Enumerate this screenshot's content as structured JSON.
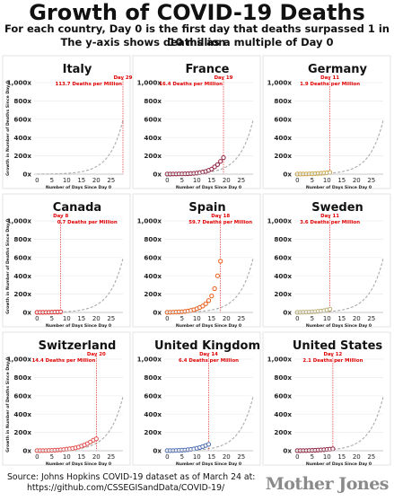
{
  "header": {
    "title": "Growth of COVID-19 Deaths",
    "subtitle_line1": "For each country, Day 0 is the first day that deaths surpassed 1 in 10 million",
    "subtitle_line2": "The y-axis shows deaths as a multiple of Day 0"
  },
  "footer": {
    "source_line1": "Source: Johns Hopkins COVID-19 dataset as of March 24 at:",
    "source_line2": "https://github.com/CSSEGISandData/COVID-19/",
    "logo": "Mother Jones"
  },
  "colors": {
    "Italy": "#7a1f2b",
    "France": "#8c1c3c",
    "Germany": "#c8a23c",
    "Canada": "#e02020",
    "Spain": "#e85a14",
    "Sweden": "#b8ad70",
    "Switzerland": "#e04a48",
    "United Kingdom": "#4a6ab0",
    "United States": "#8c1c3c",
    "reference": "#aaaaaa",
    "annotation": "#e00000"
  },
  "chart_data": [
    {
      "type": "scatter",
      "title": "Italy",
      "xlabel": "Number of Days Since Day 0",
      "ylabel": "Growth in Number of Deaths Since Day 0",
      "xlim": [
        -1,
        29
      ],
      "ylim": [
        0,
        1000
      ],
      "xticks": [
        0,
        5,
        10,
        15,
        20,
        25
      ],
      "yticks": [
        "0x",
        "200x",
        "400x",
        "600x",
        "800x",
        "1,000x"
      ],
      "annotation": {
        "day_label": "Day 29",
        "value_label": "113.7 Deaths per Million",
        "day": 29
      },
      "x": [],
      "values": [],
      "reference_line": {
        "doubling_days": 3.15
      }
    },
    {
      "type": "scatter",
      "title": "France",
      "xlabel": "Number of Days Since Day 0",
      "ylabel": "",
      "xlim": [
        -1,
        29
      ],
      "ylim": [
        0,
        1000
      ],
      "xticks": [
        0,
        5,
        10,
        15,
        20,
        25
      ],
      "yticks": [
        "0x",
        "200x",
        "400x",
        "600x",
        "800x",
        "1,000x"
      ],
      "annotation": {
        "day_label": "Day 19",
        "value_label": "16.4 Deaths per Million",
        "day": 19
      },
      "x": [
        0,
        1,
        2,
        3,
        4,
        5,
        6,
        7,
        8,
        9,
        10,
        11,
        12,
        13,
        14,
        15,
        16,
        17,
        18,
        19
      ],
      "values": [
        1,
        1,
        2,
        2,
        3,
        3,
        4,
        5,
        7,
        9,
        12,
        17,
        23,
        30,
        42,
        56,
        80,
        105,
        140,
        180
      ],
      "reference_line": {
        "doubling_days": 3.15
      }
    },
    {
      "type": "scatter",
      "title": "Germany",
      "xlabel": "Number of Days Since Day 0",
      "ylabel": "",
      "xlim": [
        -1,
        29
      ],
      "ylim": [
        0,
        1000
      ],
      "xticks": [
        0,
        5,
        10,
        15,
        20,
        25
      ],
      "yticks": [
        "0x",
        "200x",
        "400x",
        "600x",
        "800x",
        "1,000x"
      ],
      "annotation": {
        "day_label": "Day 11",
        "value_label": "1.9 Deaths per Million",
        "day": 11
      },
      "x": [
        0,
        1,
        2,
        3,
        4,
        5,
        6,
        7,
        8,
        9,
        10,
        11
      ],
      "values": [
        1,
        1,
        2,
        2,
        3,
        4,
        6,
        8,
        10,
        12,
        15,
        19
      ],
      "reference_line": {
        "doubling_days": 3.15
      }
    },
    {
      "type": "scatter",
      "title": "Canada",
      "xlabel": "Number of Days Since Day 0",
      "ylabel": "Growth in Number of Deaths Since Day 0",
      "xlim": [
        -1,
        29
      ],
      "ylim": [
        0,
        1000
      ],
      "xticks": [
        0,
        5,
        10,
        15,
        20,
        25
      ],
      "yticks": [
        "0x",
        "200x",
        "400x",
        "600x",
        "800x",
        "1,000x"
      ],
      "annotation": {
        "day_label": "Day 8",
        "value_label": "0.7 Deaths per Million",
        "day": 8
      },
      "x": [
        0,
        1,
        2,
        3,
        4,
        5,
        6,
        7,
        8
      ],
      "values": [
        1,
        1,
        1,
        2,
        2,
        3,
        4,
        5,
        7
      ],
      "reference_line": {
        "doubling_days": 3.15
      }
    },
    {
      "type": "scatter",
      "title": "Spain",
      "xlabel": "Number of Days Since Day 0",
      "ylabel": "",
      "xlim": [
        -1,
        29
      ],
      "ylim": [
        0,
        1000
      ],
      "xticks": [
        0,
        5,
        10,
        15,
        20,
        25
      ],
      "yticks": [
        "0x",
        "200x",
        "400x",
        "600x",
        "800x",
        "1,000x"
      ],
      "annotation": {
        "day_label": "Day 18",
        "value_label": "59.7 Deaths per Million",
        "day": 18
      },
      "x": [
        0,
        1,
        2,
        3,
        4,
        5,
        6,
        7,
        8,
        9,
        10,
        11,
        12,
        13,
        14,
        15,
        16,
        17,
        18
      ],
      "values": [
        1,
        2,
        3,
        4,
        6,
        8,
        11,
        15,
        22,
        30,
        40,
        55,
        70,
        95,
        130,
        180,
        260,
        400,
        560
      ],
      "reference_line": {
        "doubling_days": 3.15
      }
    },
    {
      "type": "scatter",
      "title": "Sweden",
      "xlabel": "Number of Days Since Day 0",
      "ylabel": "",
      "xlim": [
        -1,
        29
      ],
      "ylim": [
        0,
        1000
      ],
      "xticks": [
        0,
        5,
        10,
        15,
        20,
        25
      ],
      "yticks": [
        "0x",
        "200x",
        "400x",
        "600x",
        "800x",
        "1,000x"
      ],
      "annotation": {
        "day_label": "Day 11",
        "value_label": "3.6 Deaths per Million",
        "day": 11
      },
      "x": [
        0,
        1,
        2,
        3,
        4,
        5,
        6,
        7,
        8,
        9,
        10,
        11
      ],
      "values": [
        1,
        2,
        3,
        4,
        5,
        7,
        9,
        12,
        15,
        20,
        27,
        36
      ],
      "reference_line": {
        "doubling_days": 3.15
      }
    },
    {
      "type": "scatter",
      "title": "Switzerland",
      "xlabel": "Number of Days Since Day 0",
      "ylabel": "Growth in Number of Deaths Since Day 0",
      "xlim": [
        -1,
        29
      ],
      "ylim": [
        0,
        1000
      ],
      "xticks": [
        0,
        5,
        10,
        15,
        20,
        25
      ],
      "yticks": [
        "0x",
        "200x",
        "400x",
        "600x",
        "800x",
        "1,000x"
      ],
      "annotation": {
        "day_label": "Day 20",
        "value_label": "14.4 Deaths per Million",
        "day": 20
      },
      "x": [
        0,
        1,
        2,
        3,
        4,
        5,
        6,
        7,
        8,
        9,
        10,
        11,
        12,
        13,
        14,
        15,
        16,
        17,
        18,
        19,
        20
      ],
      "values": [
        1,
        1,
        2,
        2,
        3,
        4,
        6,
        8,
        10,
        13,
        17,
        21,
        26,
        32,
        40,
        50,
        62,
        78,
        95,
        115,
        130
      ],
      "reference_line": {
        "doubling_days": 3.15
      }
    },
    {
      "type": "scatter",
      "title": "United Kingdom",
      "xlabel": "Number of Days Since Day 0",
      "ylabel": "",
      "xlim": [
        -1,
        29
      ],
      "ylim": [
        0,
        1000
      ],
      "xticks": [
        0,
        5,
        10,
        15,
        20,
        25
      ],
      "yticks": [
        "0x",
        "200x",
        "400x",
        "600x",
        "800x",
        "1,000x"
      ],
      "annotation": {
        "day_label": "Day 14",
        "value_label": "6.4 Deaths per Million",
        "day": 14
      },
      "x": [
        0,
        1,
        2,
        3,
        4,
        5,
        6,
        7,
        8,
        9,
        10,
        11,
        12,
        13,
        14
      ],
      "values": [
        1,
        1,
        2,
        3,
        4,
        6,
        8,
        11,
        15,
        20,
        27,
        35,
        45,
        57,
        70
      ],
      "reference_line": {
        "doubling_days": 3.15
      }
    },
    {
      "type": "scatter",
      "title": "United States",
      "xlabel": "Number of Days Since Day 0",
      "ylabel": "",
      "xlim": [
        -1,
        29
      ],
      "ylim": [
        0,
        1000
      ],
      "xticks": [
        0,
        5,
        10,
        15,
        20,
        25
      ],
      "yticks": [
        "0x",
        "200x",
        "400x",
        "600x",
        "800x",
        "1,000x"
      ],
      "annotation": {
        "day_label": "Day 12",
        "value_label": "2.1 Deaths per Million",
        "day": 12
      },
      "x": [
        0,
        1,
        2,
        3,
        4,
        5,
        6,
        7,
        8,
        9,
        10,
        11,
        12
      ],
      "values": [
        1,
        1,
        2,
        2,
        3,
        4,
        5,
        7,
        9,
        11,
        14,
        17,
        21
      ],
      "reference_line": {
        "doubling_days": 3.15
      }
    }
  ]
}
